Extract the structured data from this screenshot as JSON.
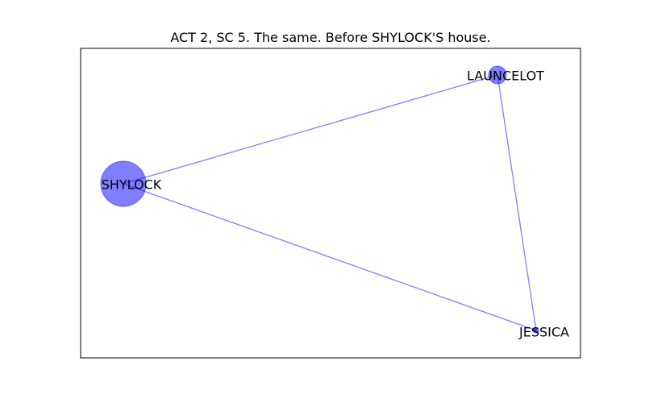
{
  "title": "ACT 2, SC 5. The same. Before SHYLOCK'S house.",
  "colors": {
    "node_fill": "#0000ff",
    "edge_stroke": "#0000ff",
    "frame": "#000000",
    "background": "#ffffff"
  },
  "graph": {
    "nodes": [
      {
        "id": "shylock",
        "label": "SHYLOCK"
      },
      {
        "id": "launcelot",
        "label": "LAUNCELOT"
      },
      {
        "id": "jessica",
        "label": "JESSICA"
      }
    ],
    "edges": [
      {
        "source": "shylock",
        "target": "launcelot"
      },
      {
        "source": "shylock",
        "target": "jessica"
      },
      {
        "source": "launcelot",
        "target": "jessica"
      }
    ]
  }
}
